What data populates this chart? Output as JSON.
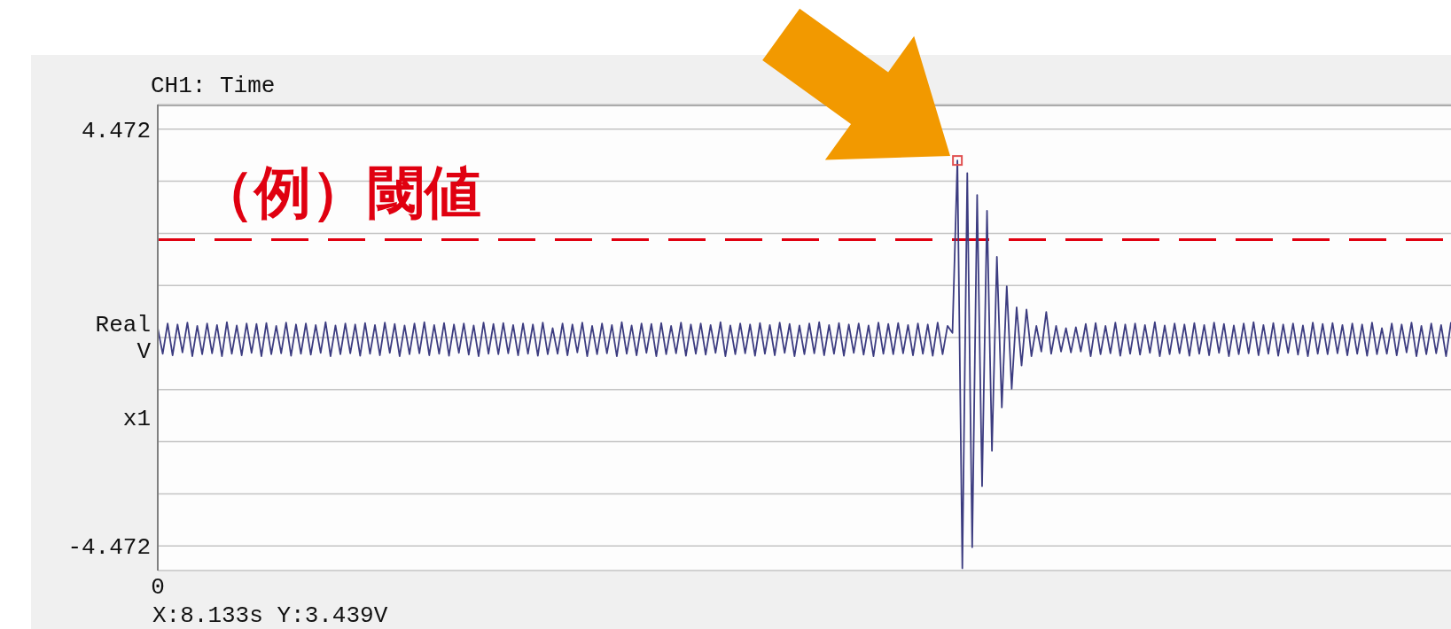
{
  "chart_data": {
    "type": "line",
    "title": "CH1: Time",
    "ylabel": "Real V",
    "annotations": [
      "x1",
      "X:8.133s Y:3.439V"
    ],
    "categories": [
      "0",
      null,
      null,
      null,
      null,
      null,
      null,
      null,
      null,
      null,
      null,
      null,
      null,
      null,
      null,
      null,
      null,
      null,
      null,
      null,
      null,
      null,
      null,
      null,
      null,
      null,
      null,
      null,
      null,
      null,
      null,
      null,
      null,
      null,
      null,
      null,
      null,
      null,
      null,
      null,
      null,
      null,
      null,
      null,
      null,
      null,
      null,
      null,
      null,
      null,
      null,
      null,
      null,
      null,
      null,
      null,
      null,
      null,
      null,
      null,
      null,
      null,
      null,
      null,
      null,
      null,
      null,
      null,
      null,
      null,
      null,
      null,
      null,
      null,
      null,
      null,
      null,
      null,
      null,
      null,
      null,
      null,
      null,
      null,
      null,
      null,
      null,
      null,
      null,
      null,
      null,
      null,
      null,
      null,
      null,
      null,
      null,
      null,
      null,
      null,
      null,
      null,
      null,
      null,
      null,
      null,
      null,
      null,
      null,
      null,
      null,
      null,
      null,
      null,
      null,
      null,
      null,
      null,
      null,
      null,
      null,
      null,
      null,
      null,
      null,
      null,
      null,
      null,
      null,
      null,
      null,
      null,
      null,
      null,
      null,
      null,
      null,
      null,
      null,
      null,
      null,
      null,
      null,
      null,
      null,
      null,
      null,
      null,
      null,
      null,
      null,
      null,
      null,
      null,
      null,
      null,
      null,
      null,
      null,
      null,
      null,
      null,
      null,
      null,
      null,
      null,
      null,
      null,
      null,
      null,
      null,
      null,
      null,
      null,
      null,
      null,
      null,
      null,
      null,
      null,
      null,
      null,
      null,
      null,
      null,
      null,
      null,
      null,
      null,
      null,
      null,
      null,
      null,
      null,
      null,
      null,
      null,
      null,
      null,
      null,
      null,
      null,
      null,
      null,
      null,
      null,
      null,
      null,
      null,
      null,
      null,
      null,
      null,
      null,
      null,
      null,
      null,
      null,
      null,
      null,
      null,
      null,
      null,
      null,
      null,
      null,
      null,
      null,
      null,
      null,
      null,
      null,
      null,
      null,
      null,
      null,
      null,
      null,
      null,
      null,
      null,
      null,
      null,
      null,
      null,
      null,
      null,
      null,
      null,
      null,
      null,
      null,
      null,
      null,
      null,
      null,
      null,
      null,
      null,
      null,
      null,
      null,
      null
    ],
    "values": [
      0.2,
      -0.35,
      0.3,
      -0.38,
      0.28,
      -0.32,
      0.32,
      -0.4,
      0.25,
      -0.36,
      0.3,
      -0.34,
      0.27,
      -0.4,
      0.33,
      -0.35,
      0.26,
      -0.38,
      0.3,
      -0.33,
      0.29,
      -0.4,
      0.31,
      -0.36,
      0.25,
      -0.34,
      0.32,
      -0.39,
      0.28,
      -0.35,
      0.3,
      -0.37,
      0.27,
      -0.33,
      0.33,
      -0.4,
      0.26,
      -0.36,
      0.3,
      -0.34,
      0.28,
      -0.39,
      0.31,
      -0.35,
      0.27,
      -0.38,
      0.32,
      -0.33,
      0.29,
      -0.4,
      0.26,
      -0.36,
      0.3,
      -0.34,
      0.33,
      -0.38,
      0.27,
      -0.35,
      0.31,
      -0.39,
      0.28,
      -0.33,
      0.3,
      -0.37,
      0.26,
      -0.4,
      0.32,
      -0.35,
      0.29,
      -0.36,
      0.31,
      -0.34,
      0.27,
      -0.38,
      0.3,
      -0.35,
      0.28,
      -0.39,
      0.32,
      -0.36,
      0.2,
      -0.35,
      0.3,
      -0.38,
      0.28,
      -0.32,
      0.32,
      -0.4,
      0.25,
      -0.36,
      0.3,
      -0.34,
      0.27,
      -0.4,
      0.33,
      -0.35,
      0.26,
      -0.38,
      0.3,
      -0.33,
      0.29,
      -0.4,
      0.31,
      -0.36,
      0.25,
      -0.34,
      0.32,
      -0.39,
      0.28,
      -0.35,
      0.3,
      -0.37,
      0.27,
      -0.33,
      0.33,
      -0.4,
      0.26,
      -0.36,
      0.3,
      -0.34,
      0.28,
      -0.39,
      0.31,
      -0.35,
      0.27,
      -0.38,
      0.32,
      -0.33,
      0.29,
      -0.4,
      0.26,
      -0.36,
      0.3,
      -0.34,
      0.33,
      -0.38,
      0.27,
      -0.35,
      0.31,
      -0.39,
      0.28,
      -0.33,
      0.3,
      -0.37,
      0.26,
      -0.4,
      0.32,
      -0.35,
      0.29,
      -0.36,
      0.31,
      -0.34,
      0.27,
      -0.38,
      0.3,
      -0.35,
      0.28,
      -0.39,
      0.32,
      -0.36,
      0.25,
      0.1,
      3.8,
      -4.95,
      3.53,
      -4.5,
      3.06,
      -3.19,
      2.72,
      -2.43,
      1.73,
      -1.5,
      1.1,
      -1.1,
      0.65,
      -0.6,
      0.6,
      -0.4,
      0.25,
      -0.3,
      0.55,
      -0.35,
      0.25,
      -0.3,
      0.2,
      -0.32,
      0.22,
      -0.3,
      0.29,
      -0.4,
      0.31,
      -0.36,
      0.25,
      -0.34,
      0.32,
      -0.39,
      0.28,
      -0.35,
      0.3,
      -0.37,
      0.27,
      -0.33,
      0.33,
      -0.4,
      0.26,
      -0.36,
      0.3,
      -0.34,
      0.28,
      -0.39,
      0.31,
      -0.35,
      0.27,
      -0.38,
      0.32,
      -0.33,
      0.29,
      -0.4,
      0.26,
      -0.36,
      0.3,
      -0.34,
      0.33,
      -0.38,
      0.27,
      -0.35,
      0.31,
      -0.39,
      0.28,
      -0.33,
      0.3,
      -0.37,
      0.26,
      -0.4,
      0.32,
      -0.35,
      0.29,
      -0.36,
      0.31,
      -0.34,
      0.27,
      -0.38,
      0.3,
      -0.35,
      0.28,
      -0.39,
      0.32,
      -0.36,
      0.2,
      -0.35,
      0.3,
      -0.38,
      0.28,
      -0.32,
      0.32,
      -0.4,
      0.25,
      -0.36,
      0.3,
      -0.34,
      0.27,
      -0.4,
      0.33
    ],
    "color": "#3c3c80",
    "ylim": [
      -5,
      5
    ],
    "yticks": [
      {
        "value": -4.472,
        "label": "-4.472"
      },
      {
        "value": -3.354,
        "label": null
      },
      {
        "value": -2.236,
        "label": null
      },
      {
        "value": -1.118,
        "label": null
      },
      {
        "value": 0,
        "label": null
      },
      {
        "value": 1.118,
        "label": null
      },
      {
        "value": 2.236,
        "label": null
      },
      {
        "value": 3.354,
        "label": null
      },
      {
        "value": 4.472,
        "label": "4.472"
      }
    ],
    "grid": "y",
    "ref_lines": [
      {
        "axis": "y",
        "value": 2.1,
        "label": "（例）閾値",
        "color": "#e00010",
        "line_style": "dashed"
      }
    ]
  }
}
